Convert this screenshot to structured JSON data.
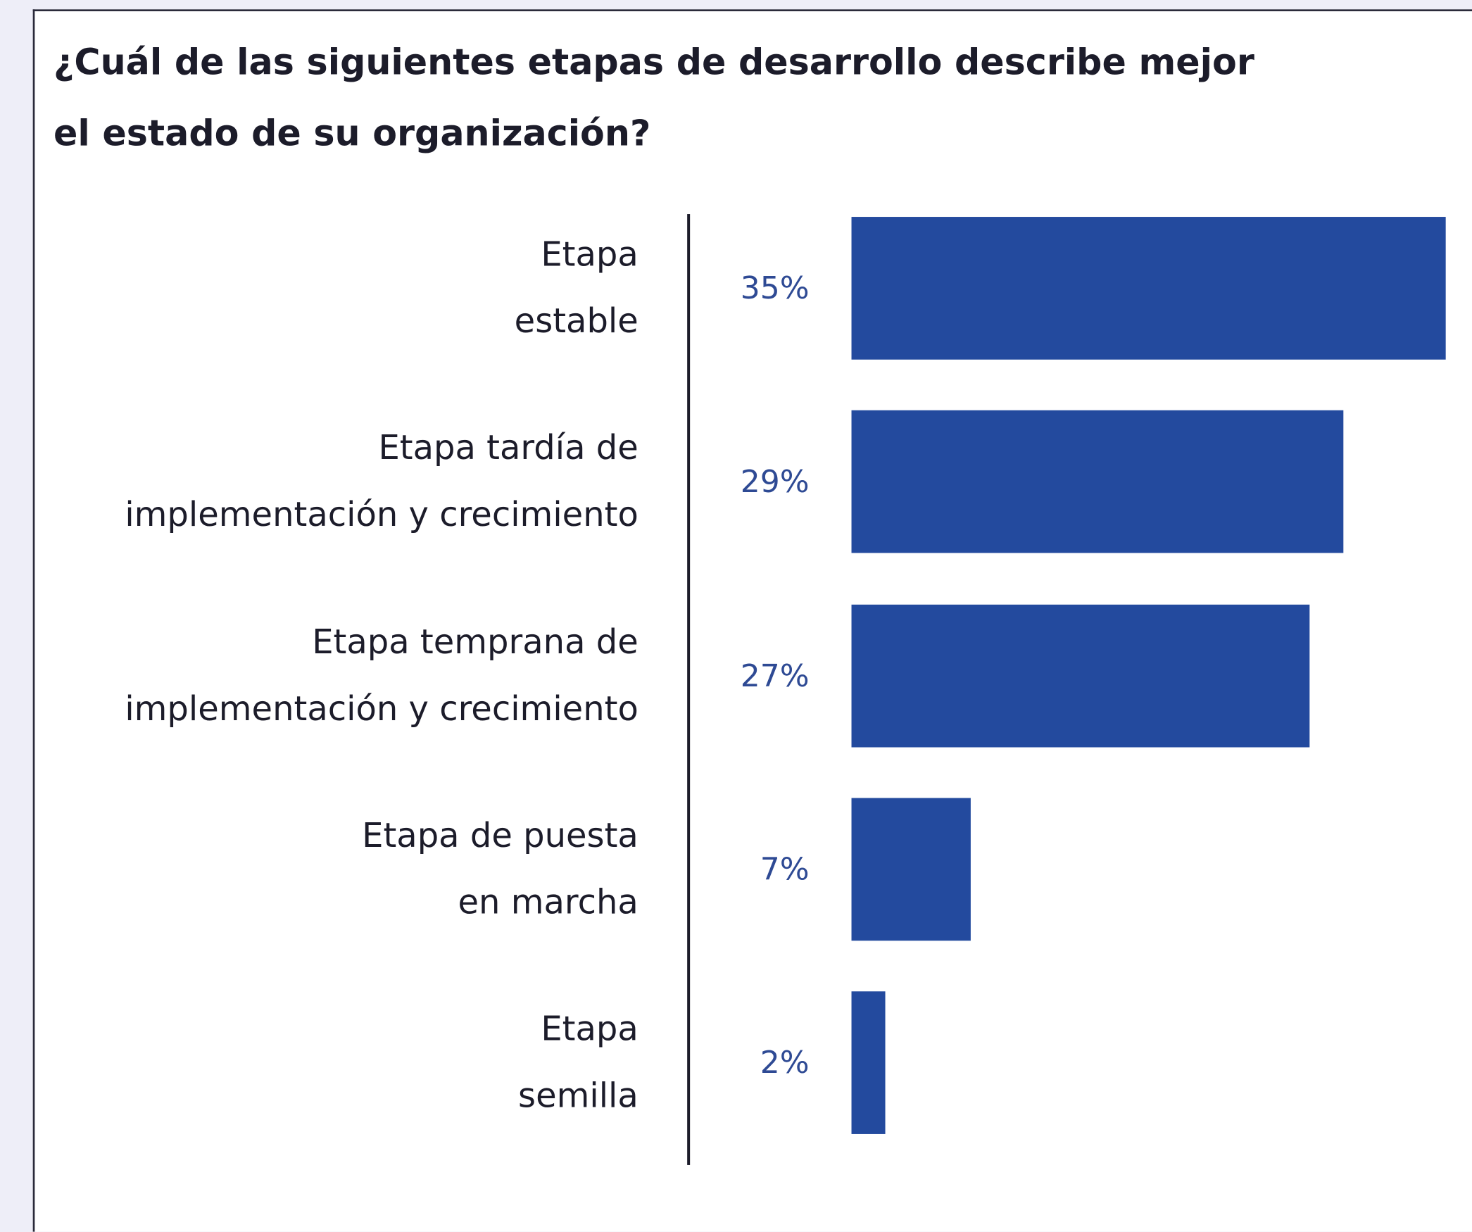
{
  "chart_data": {
    "type": "bar",
    "orientation": "horizontal",
    "title": "¿Cuál de las siguientes etapas de desarrollo describe mejor\nel estado de su organización?",
    "categories": [
      "Etapa\nestable",
      "Etapa tardía de\nimplementación y crecimiento",
      "Etapa temprana de\nimplementación y crecimiento",
      "Etapa de puesta\nen marcha",
      "Etapa\nsemilla"
    ],
    "values": [
      35,
      29,
      27,
      7,
      2
    ],
    "value_labels": [
      "35%",
      "29%",
      "27%",
      "7%",
      "2%"
    ],
    "color": "#234a9e"
  }
}
